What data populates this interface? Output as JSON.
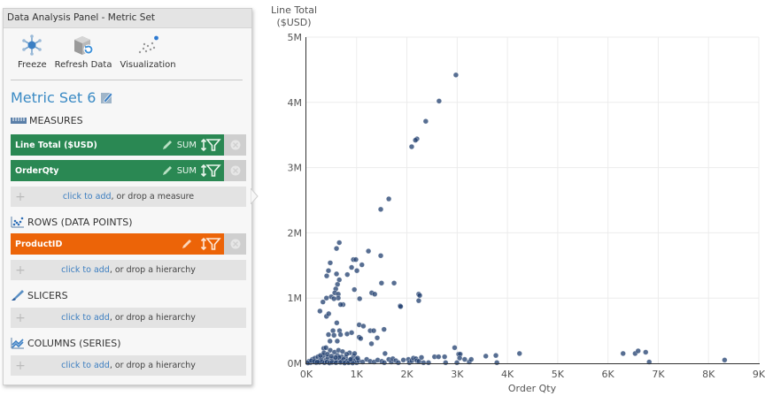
{
  "panel": {
    "title": "Data Analysis Panel - Metric Set",
    "toolbar": [
      {
        "label": "Freeze",
        "icon": "freeze-icon"
      },
      {
        "label": "Refresh Data",
        "icon": "refresh-data-icon"
      },
      {
        "label": "Visualization",
        "icon": "visualization-icon"
      }
    ],
    "metric_set_name": "Metric Set 6",
    "sections": {
      "measures": {
        "title": "MEASURES",
        "items": [
          {
            "label": "Line Total ($USD)",
            "aggregation": "SUM",
            "color": "#2a8853"
          },
          {
            "label": "OrderQty",
            "aggregation": "SUM",
            "color": "#2a8853"
          }
        ],
        "drop_link": "click to add",
        "drop_text": ", or drop a measure"
      },
      "rows": {
        "title": "ROWS (DATA POINTS)",
        "items": [
          {
            "label": "ProductID",
            "color": "#ec6408"
          }
        ],
        "drop_link": "click to add",
        "drop_text": ", or drop a hierarchy"
      },
      "slicers": {
        "title": "SLICERS",
        "drop_link": "click to add",
        "drop_text": ", or drop a hierarchy"
      },
      "columns": {
        "title": "COLUMNS (SERIES)",
        "drop_link": "click to add",
        "drop_text": ", or drop a hierarchy"
      }
    }
  },
  "colors": {
    "measure": "#2a8853",
    "row": "#ec6408",
    "accent": "#3a8ac4",
    "point": "#1f3d6e"
  },
  "chart_data": {
    "type": "scatter",
    "title": "",
    "xlabel": "Order Qty",
    "ylabel": "Line Total ($USD)",
    "ylabel_lines": [
      "Line Total",
      "($USD)"
    ],
    "xlim": [
      0,
      9000
    ],
    "ylim": [
      0,
      5000000
    ],
    "x_ticks": [
      "0K",
      "1K",
      "2K",
      "3K",
      "4K",
      "5K",
      "6K",
      "7K",
      "8K",
      "9K"
    ],
    "y_ticks": [
      "0M",
      "1M",
      "2M",
      "3M",
      "4M",
      "5M"
    ],
    "grid": true,
    "legend": "none",
    "points": [
      [
        2975,
        4420000
      ],
      [
        2640,
        4020000
      ],
      [
        2375,
        3710000
      ],
      [
        2200,
        3440000
      ],
      [
        2170,
        3420000
      ],
      [
        2095,
        3320000
      ],
      [
        1640,
        2520000
      ],
      [
        1480,
        2360000
      ],
      [
        655,
        1850000
      ],
      [
        600,
        1760000
      ],
      [
        1235,
        1720000
      ],
      [
        1480,
        1650000
      ],
      [
        475,
        1540000
      ],
      [
        935,
        1590000
      ],
      [
        985,
        1590000
      ],
      [
        1105,
        1510000
      ],
      [
        440,
        1420000
      ],
      [
        405,
        1340000
      ],
      [
        600,
        1370000
      ],
      [
        815,
        1360000
      ],
      [
        900,
        1470000
      ],
      [
        1005,
        1420000
      ],
      [
        655,
        1280000
      ],
      [
        620,
        1210000
      ],
      [
        585,
        1140000
      ],
      [
        565,
        1080000
      ],
      [
        635,
        1060000
      ],
      [
        635,
        1000000
      ],
      [
        955,
        1130000
      ],
      [
        495,
        1020000
      ],
      [
        1745,
        1230000
      ],
      [
        1495,
        1230000
      ],
      [
        2235,
        1060000
      ],
      [
        2255,
        1040000
      ],
      [
        2235,
        960000
      ],
      [
        1865,
        880000
      ],
      [
        1875,
        870000
      ],
      [
        1300,
        1080000
      ],
      [
        1360,
        1060000
      ],
      [
        1060,
        990000
      ],
      [
        730,
        900000
      ],
      [
        680,
        900000
      ],
      [
        550,
        990000
      ],
      [
        400,
        1000000
      ],
      [
        330,
        940000
      ],
      [
        270,
        800000
      ],
      [
        400,
        720000
      ],
      [
        445,
        760000
      ],
      [
        605,
        620000
      ],
      [
        660,
        500000
      ],
      [
        530,
        500000
      ],
      [
        440,
        440000
      ],
      [
        550,
        430000
      ],
      [
        470,
        340000
      ],
      [
        615,
        340000
      ],
      [
        680,
        440000
      ],
      [
        1050,
        590000
      ],
      [
        1135,
        570000
      ],
      [
        1270,
        500000
      ],
      [
        1340,
        500000
      ],
      [
        1545,
        520000
      ],
      [
        1410,
        390000
      ],
      [
        1295,
        300000
      ],
      [
        1565,
        150000
      ],
      [
        1050,
        400000
      ],
      [
        1080,
        380000
      ],
      [
        810,
        450000
      ],
      [
        900,
        470000
      ],
      [
        345,
        230000
      ],
      [
        390,
        240000
      ],
      [
        475,
        200000
      ],
      [
        560,
        170000
      ],
      [
        620,
        120000
      ],
      [
        700,
        100000
      ],
      [
        780,
        90000
      ],
      [
        860,
        160000
      ],
      [
        940,
        110000
      ],
      [
        990,
        60000
      ],
      [
        50,
        30000
      ],
      [
        120,
        60000
      ],
      [
        170,
        80000
      ],
      [
        230,
        100000
      ],
      [
        270,
        40000
      ],
      [
        300,
        70000
      ],
      [
        340,
        120000
      ],
      [
        390,
        50000
      ],
      [
        430,
        90000
      ],
      [
        470,
        30000
      ],
      [
        520,
        70000
      ],
      [
        560,
        20000
      ],
      [
        610,
        50000
      ],
      [
        650,
        90000
      ],
      [
        700,
        30000
      ],
      [
        740,
        60000
      ],
      [
        780,
        20000
      ],
      [
        820,
        40000
      ],
      [
        870,
        20000
      ],
      [
        900,
        70000
      ],
      [
        950,
        30000
      ],
      [
        1000,
        10000
      ],
      [
        1040,
        40000
      ],
      [
        1120,
        20000
      ],
      [
        1200,
        60000
      ],
      [
        1270,
        30000
      ],
      [
        1350,
        20000
      ],
      [
        1420,
        50000
      ],
      [
        1500,
        30000
      ],
      [
        1550,
        10000
      ],
      [
        1640,
        60000
      ],
      [
        1690,
        20000
      ],
      [
        1720,
        70000
      ],
      [
        1780,
        40000
      ],
      [
        1830,
        10000
      ],
      [
        1930,
        50000
      ],
      [
        2030,
        60000
      ],
      [
        2050,
        10000
      ],
      [
        2100,
        40000
      ],
      [
        2130,
        80000
      ],
      [
        2180,
        70000
      ],
      [
        2200,
        40000
      ],
      [
        2240,
        30000
      ],
      [
        2290,
        90000
      ],
      [
        2330,
        10000
      ],
      [
        2430,
        10000
      ],
      [
        2550,
        100000
      ],
      [
        2630,
        100000
      ],
      [
        2750,
        100000
      ],
      [
        2950,
        240000
      ],
      [
        3030,
        140000
      ],
      [
        3060,
        140000
      ],
      [
        2770,
        10000
      ],
      [
        2995,
        10000
      ],
      [
        3050,
        80000
      ],
      [
        3150,
        60000
      ],
      [
        3240,
        20000
      ],
      [
        3280,
        60000
      ],
      [
        3570,
        110000
      ],
      [
        3770,
        120000
      ],
      [
        3790,
        10000
      ],
      [
        4240,
        150000
      ],
      [
        6300,
        150000
      ],
      [
        6540,
        150000
      ],
      [
        6600,
        190000
      ],
      [
        6750,
        170000
      ],
      [
        6820,
        20000
      ],
      [
        8320,
        50000
      ],
      [
        80,
        10000
      ],
      [
        150,
        20000
      ],
      [
        200,
        10000
      ],
      [
        260,
        15000
      ],
      [
        310,
        25000
      ],
      [
        360,
        10000
      ],
      [
        410,
        20000
      ],
      [
        460,
        5000
      ],
      [
        510,
        15000
      ],
      [
        590,
        10000
      ],
      [
        680,
        15000
      ],
      [
        760,
        5000
      ],
      [
        840,
        10000
      ],
      [
        920,
        5000
      ],
      [
        30,
        5000
      ],
      [
        100,
        40000
      ],
      [
        160,
        30000
      ],
      [
        220,
        20000
      ],
      [
        280,
        120000
      ],
      [
        350,
        160000
      ],
      [
        420,
        140000
      ],
      [
        500,
        110000
      ],
      [
        580,
        90000
      ],
      [
        640,
        200000
      ],
      [
        720,
        180000
      ],
      [
        800,
        140000
      ],
      [
        880,
        60000
      ],
      [
        960,
        150000
      ],
      [
        1020,
        80000
      ]
    ]
  }
}
